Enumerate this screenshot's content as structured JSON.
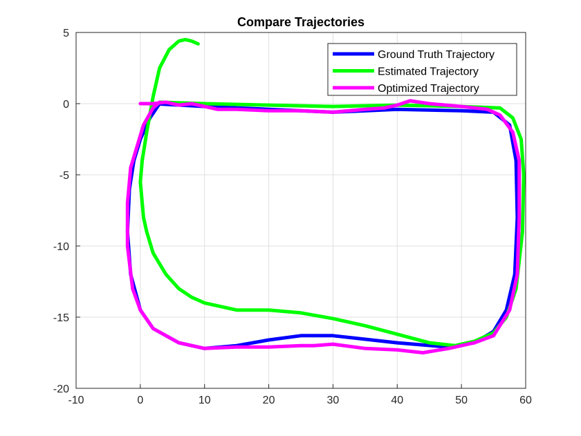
{
  "chart_data": {
    "type": "line",
    "title": "Compare Trajectories",
    "xlabel": "",
    "ylabel": "",
    "xlim": [
      -10,
      60
    ],
    "ylim": [
      -20,
      5
    ],
    "xticks": [
      -10,
      0,
      10,
      20,
      30,
      40,
      50,
      60
    ],
    "yticks": [
      -20,
      -15,
      -10,
      -5,
      0,
      5
    ],
    "grid": true,
    "legend_placement": "top-right",
    "series": [
      {
        "name": "Ground Truth Trajectory",
        "color": "#0000ff",
        "points": [
          [
            2,
            0
          ],
          [
            10,
            -0.2
          ],
          [
            20,
            -0.4
          ],
          [
            30,
            -0.6
          ],
          [
            40,
            -0.4
          ],
          [
            50,
            -0.5
          ],
          [
            55,
            -0.6
          ],
          [
            57.5,
            -1.5
          ],
          [
            58.5,
            -4
          ],
          [
            58.7,
            -8
          ],
          [
            58.3,
            -12
          ],
          [
            57,
            -14.5
          ],
          [
            55,
            -16
          ],
          [
            52,
            -16.8
          ],
          [
            48,
            -17.1
          ],
          [
            40,
            -16.8
          ],
          [
            30,
            -16.3
          ],
          [
            25,
            -16.3
          ],
          [
            20,
            -16.6
          ],
          [
            15,
            -17
          ],
          [
            10,
            -17.2
          ],
          [
            6,
            -16.8
          ],
          [
            2,
            -15.8
          ],
          [
            0,
            -14.5
          ],
          [
            -1.5,
            -12
          ],
          [
            -2,
            -9
          ],
          [
            -1.7,
            -6
          ],
          [
            -1,
            -4
          ],
          [
            0,
            -2.5
          ],
          [
            1.5,
            -1
          ],
          [
            3,
            0
          ]
        ]
      },
      {
        "name": "Estimated Trajectory",
        "color": "#00ff00",
        "points": [
          [
            3,
            0.1
          ],
          [
            10,
            0
          ],
          [
            20,
            -0.1
          ],
          [
            30,
            -0.2
          ],
          [
            40,
            -0.1
          ],
          [
            50,
            -0.2
          ],
          [
            56,
            -0.3
          ],
          [
            58,
            -1
          ],
          [
            59.3,
            -2.5
          ],
          [
            59.7,
            -5
          ],
          [
            59.5,
            -9
          ],
          [
            58.5,
            -13
          ],
          [
            57,
            -15
          ],
          [
            55,
            -16.1
          ],
          [
            52,
            -16.7
          ],
          [
            49,
            -17
          ],
          [
            45,
            -16.8
          ],
          [
            40,
            -16.2
          ],
          [
            35,
            -15.6
          ],
          [
            30,
            -15.1
          ],
          [
            25,
            -14.7
          ],
          [
            20,
            -14.5
          ],
          [
            15,
            -14.5
          ],
          [
            10,
            -14
          ],
          [
            8,
            -13.6
          ],
          [
            6,
            -13
          ],
          [
            4,
            -12
          ],
          [
            2,
            -10.5
          ],
          [
            1,
            -9
          ],
          [
            0.5,
            -8
          ],
          [
            0,
            -5.5
          ],
          [
            0.3,
            -4
          ],
          [
            1,
            -2
          ],
          [
            2,
            0.5
          ],
          [
            3,
            2.5
          ],
          [
            4.5,
            3.8
          ],
          [
            6,
            4.4
          ],
          [
            7,
            4.5
          ],
          [
            8,
            4.4
          ],
          [
            9,
            4.2
          ]
        ]
      },
      {
        "name": "Optimized Trajectory",
        "color": "#ff00ff",
        "points": [
          [
            0,
            0
          ],
          [
            2,
            0
          ],
          [
            4,
            0.1
          ],
          [
            6,
            -0.1
          ],
          [
            8,
            0
          ],
          [
            10,
            -0.2
          ],
          [
            12,
            -0.4
          ],
          [
            15,
            -0.4
          ],
          [
            20,
            -0.5
          ],
          [
            25,
            -0.5
          ],
          [
            30,
            -0.6
          ],
          [
            35,
            -0.4
          ],
          [
            38,
            -0.3
          ],
          [
            40,
            -0.1
          ],
          [
            42,
            0.2
          ],
          [
            45,
            0
          ],
          [
            50,
            -0.2
          ],
          [
            54,
            -0.4
          ],
          [
            56,
            -0.8
          ],
          [
            58,
            -2
          ],
          [
            59,
            -4
          ],
          [
            59,
            -8
          ],
          [
            58.7,
            -12
          ],
          [
            57.5,
            -14.5
          ],
          [
            55,
            -16.3
          ],
          [
            52,
            -16.8
          ],
          [
            48,
            -17.2
          ],
          [
            44,
            -17.5
          ],
          [
            40,
            -17.3
          ],
          [
            35,
            -17.2
          ],
          [
            30,
            -16.9
          ],
          [
            27,
            -17
          ],
          [
            25,
            -17
          ],
          [
            20,
            -17.1
          ],
          [
            15,
            -17.1
          ],
          [
            10,
            -17.2
          ],
          [
            6,
            -16.8
          ],
          [
            2,
            -15.8
          ],
          [
            0,
            -14.5
          ],
          [
            -1.2,
            -13
          ],
          [
            -2,
            -10
          ],
          [
            -2,
            -7
          ],
          [
            -1.5,
            -4.5
          ],
          [
            -0.5,
            -3
          ],
          [
            0.5,
            -1.5
          ],
          [
            2,
            -0.3
          ],
          [
            3,
            0.1
          ]
        ]
      }
    ]
  }
}
